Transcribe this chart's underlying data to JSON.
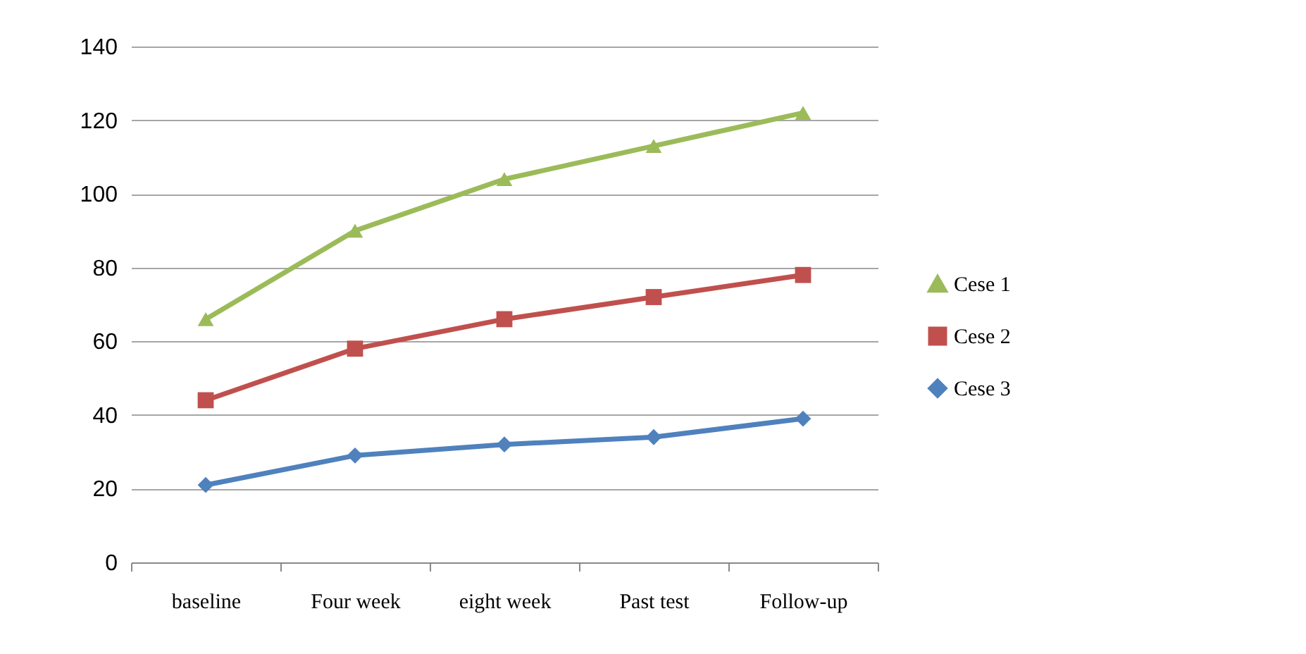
{
  "chart_data": {
    "type": "line",
    "categories": [
      "baseline",
      "Four week",
      "eight week",
      "Past test",
      "Follow-up"
    ],
    "series": [
      {
        "name": "Cese 1",
        "color": "#9bbb59",
        "marker": "triangle",
        "values": [
          66,
          90,
          104,
          113,
          122
        ]
      },
      {
        "name": "Cese 2",
        "color": "#c0504d",
        "marker": "square",
        "values": [
          44,
          58,
          66,
          72,
          78
        ]
      },
      {
        "name": "Cese 3",
        "color": "#4f81bd",
        "marker": "diamond",
        "values": [
          21,
          29,
          32,
          34,
          39
        ]
      }
    ],
    "ylim": [
      0,
      140
    ],
    "yticks": [
      0,
      20,
      40,
      60,
      80,
      100,
      120,
      140
    ],
    "grid": "y",
    "legend": "right",
    "line_style": "solid"
  }
}
